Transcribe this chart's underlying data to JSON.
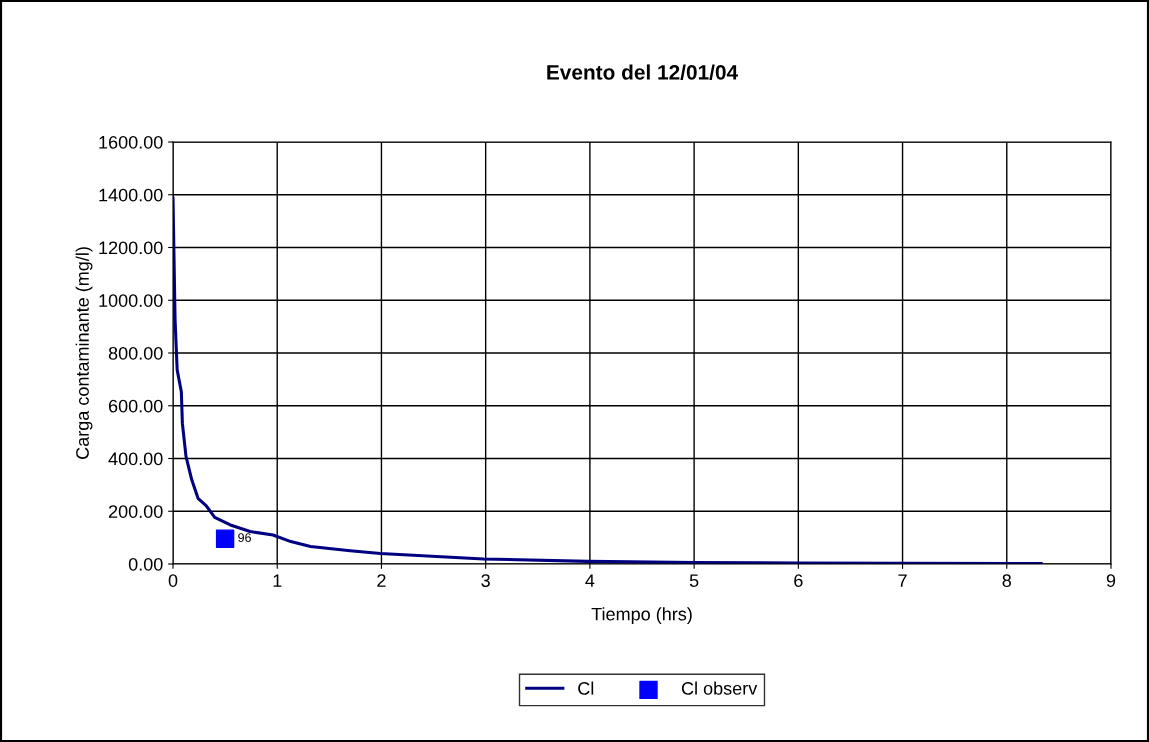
{
  "chart_data": {
    "type": "line",
    "title": "Evento del 12/01/04",
    "xlabel": "Tiempo (hrs)",
    "ylabel": "Carga contaminante (mg/l)",
    "xlim": [
      0,
      9
    ],
    "xticks": [
      0,
      1,
      2,
      3,
      4,
      5,
      6,
      7,
      8,
      9
    ],
    "ylim": [
      0,
      1600
    ],
    "yticks": [
      {
        "value": 0,
        "label": "0.00"
      },
      {
        "value": 200,
        "label": "200.00"
      },
      {
        "value": 400,
        "label": "400.00"
      },
      {
        "value": 600,
        "label": "600.00"
      },
      {
        "value": 800,
        "label": "800.00"
      },
      {
        "value": 1000,
        "label": "1000.00"
      },
      {
        "value": 1200,
        "label": "1200.00"
      },
      {
        "value": 1400,
        "label": "1400.00"
      },
      {
        "value": 1600,
        "label": "1600.00"
      }
    ],
    "grid": true,
    "legend": "bottom",
    "series": [
      {
        "name": "Cl",
        "color": "#000080",
        "marker": "none",
        "line_style": "solid",
        "x": [
          0,
          0.02,
          0.04,
          0.08,
          0.09,
          0.125,
          0.18,
          0.24,
          0.32,
          0.4,
          0.55,
          0.74,
          0.96,
          1.13,
          1.32,
          1.7,
          1.99,
          2.98,
          3.98,
          5.0,
          6.0,
          7.0,
          8.33
        ],
        "values": [
          1387,
          925,
          736,
          653,
          533,
          407,
          319,
          249,
          220,
          177,
          148,
          123,
          110,
          85,
          66,
          50,
          40,
          19,
          10,
          6,
          4,
          3,
          2
        ]
      },
      {
        "name": "Cl observ",
        "type": "scatter",
        "color": "#0000ff",
        "marker": "square",
        "x": [
          0.5
        ],
        "values": [
          96
        ],
        "value_labels": [
          "96"
        ]
      }
    ]
  }
}
